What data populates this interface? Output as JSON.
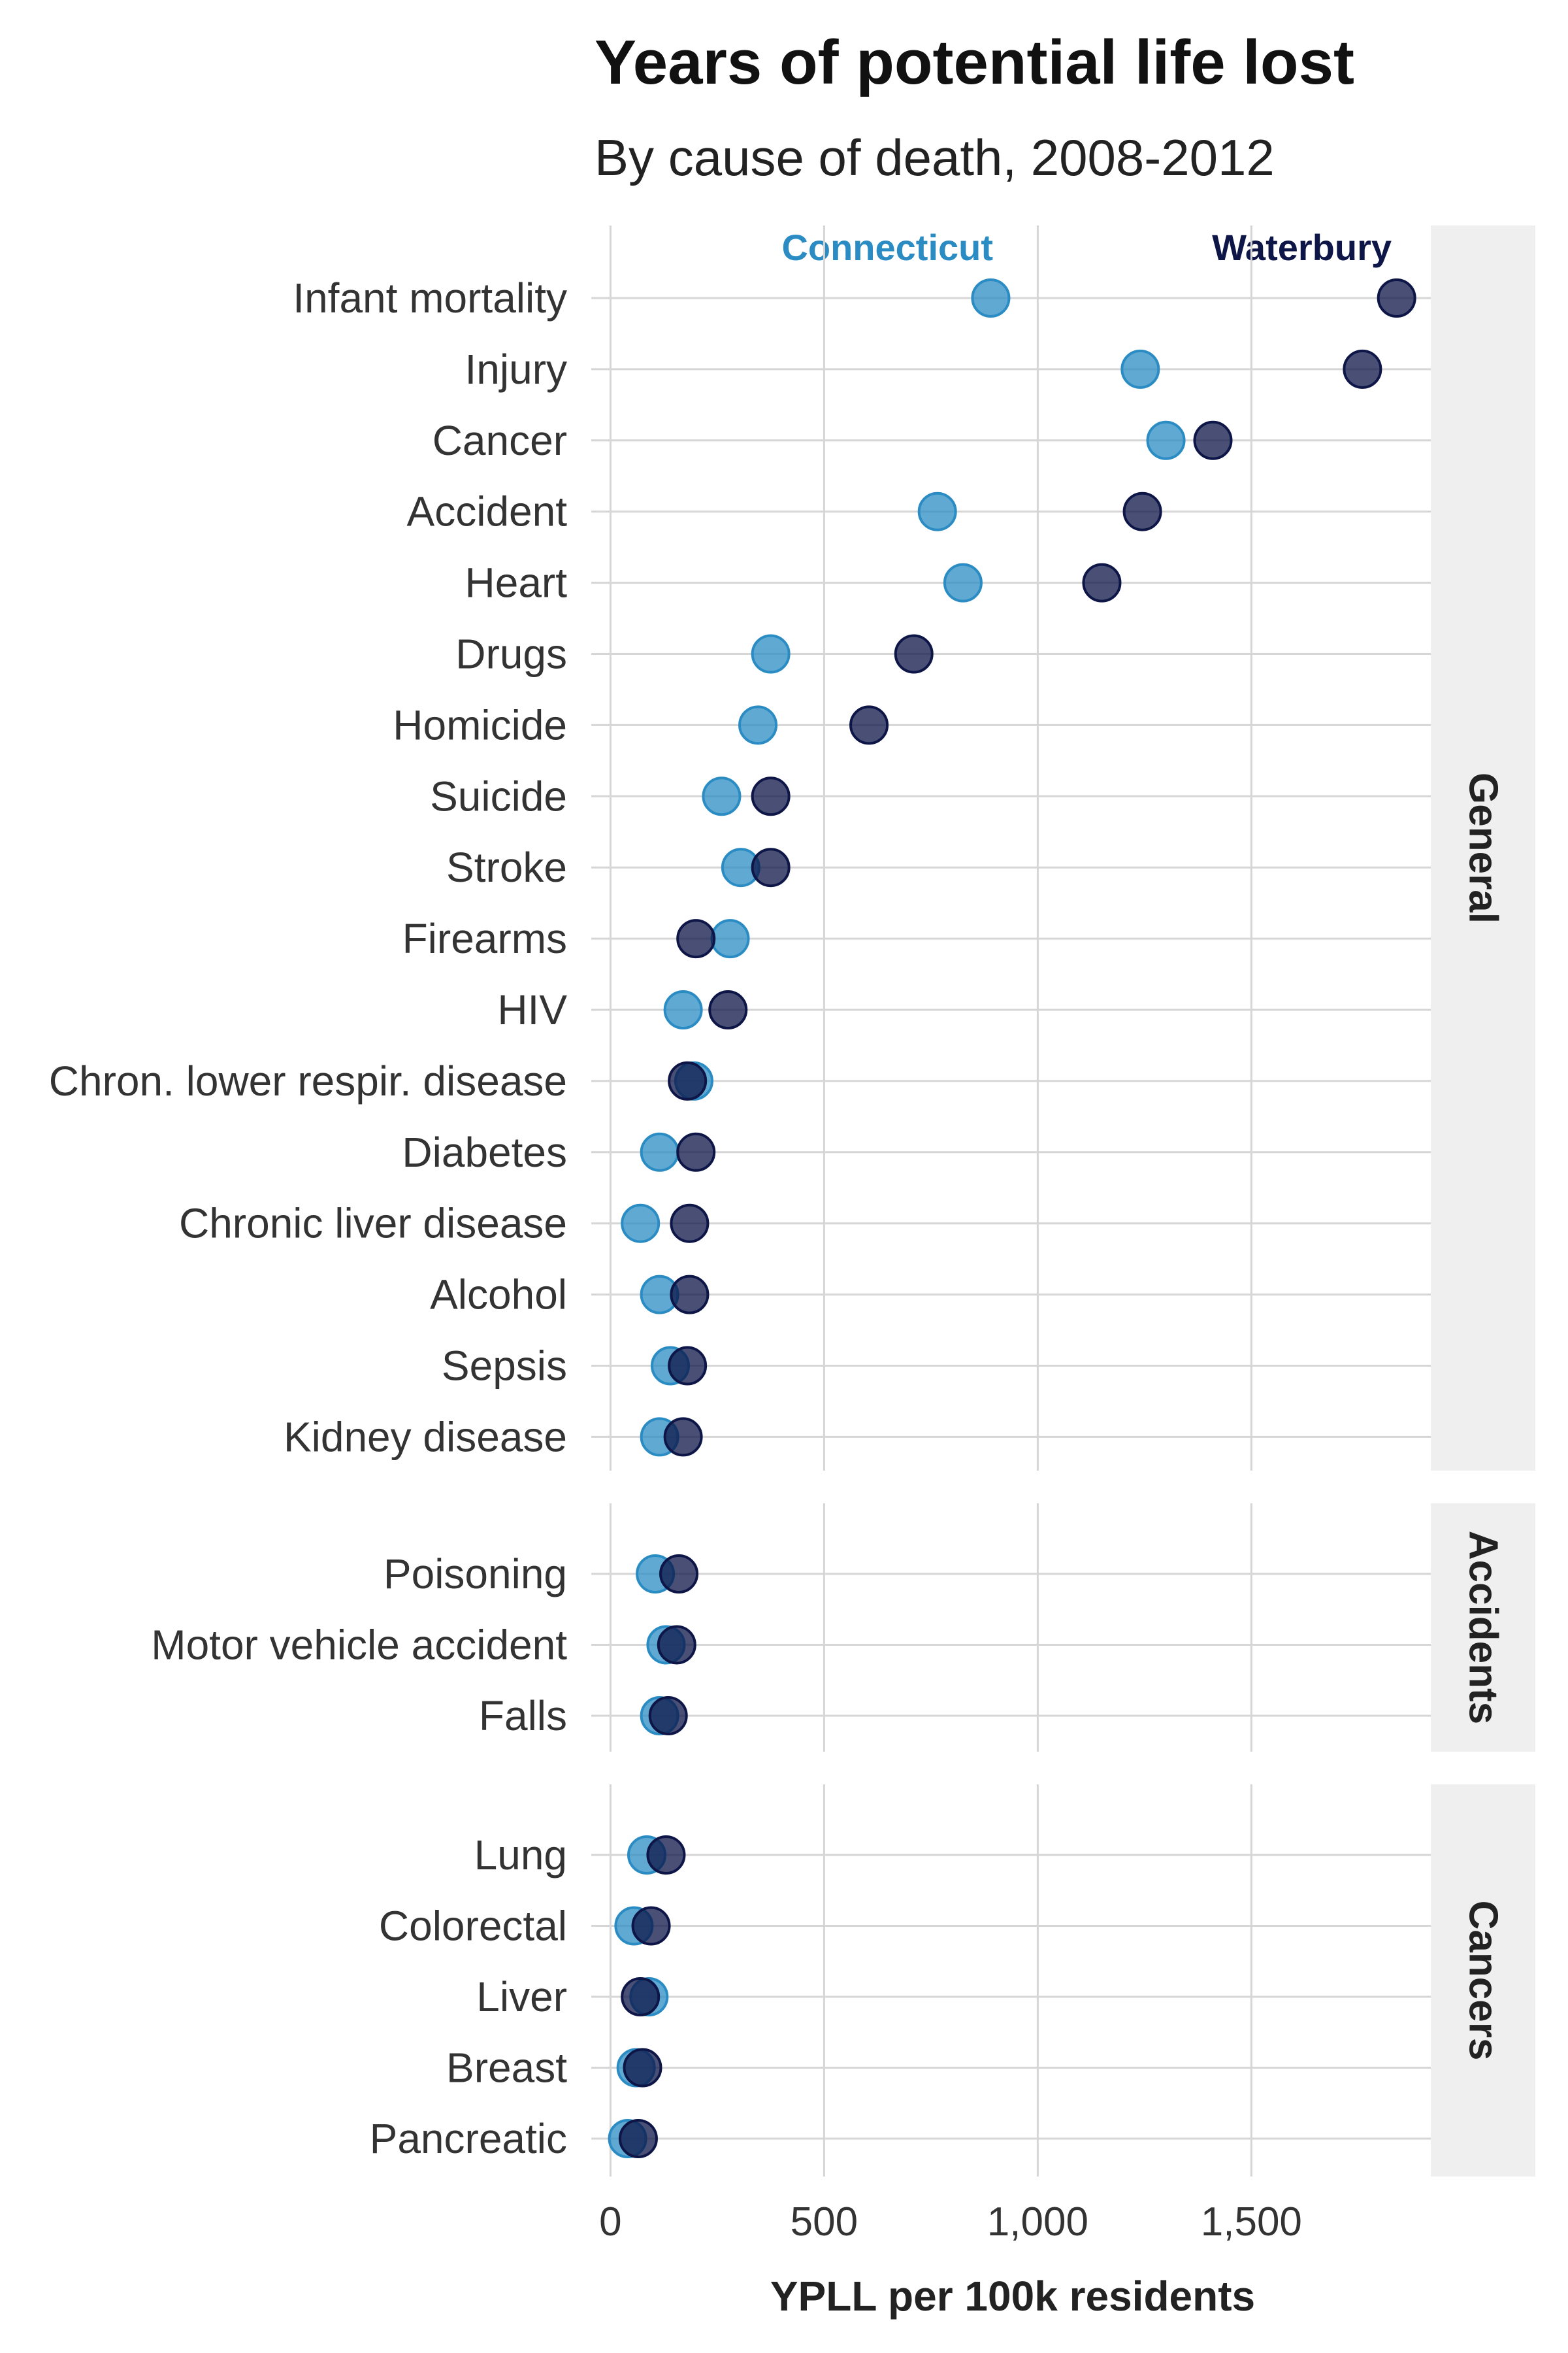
{
  "chart_data": {
    "type": "scatter",
    "title": "Years of potential life lost",
    "subtitle": "By cause of death, 2008-2012",
    "xlabel": "YPLL per 100k residents",
    "xlim": [
      -45,
      1920
    ],
    "xticks": [
      0,
      500,
      1000,
      1500
    ],
    "xtick_labels": [
      "0",
      "500",
      "1,000",
      "1,500"
    ],
    "grid": true,
    "legend": {
      "placement": "top",
      "entries": [
        {
          "name": "Connecticut",
          "color": "#2b8cc4"
        },
        {
          "name": "Waterbury",
          "color": "#0d1647"
        }
      ]
    },
    "panels": [
      {
        "name": "General",
        "rows": [
          {
            "label": "Infant mortality",
            "connecticut": 890,
            "waterbury": 1840
          },
          {
            "label": "Injury",
            "connecticut": 1240,
            "waterbury": 1760
          },
          {
            "label": "Cancer",
            "connecticut": 1300,
            "waterbury": 1410
          },
          {
            "label": "Accident",
            "connecticut": 765,
            "waterbury": 1245
          },
          {
            "label": "Heart",
            "connecticut": 825,
            "waterbury": 1150
          },
          {
            "label": "Drugs",
            "connecticut": 375,
            "waterbury": 710
          },
          {
            "label": "Homicide",
            "connecticut": 345,
            "waterbury": 605
          },
          {
            "label": "Suicide",
            "connecticut": 260,
            "waterbury": 375
          },
          {
            "label": "Stroke",
            "connecticut": 305,
            "waterbury": 375
          },
          {
            "label": "Firearms",
            "connecticut": 280,
            "waterbury": 200
          },
          {
            "label": "HIV",
            "connecticut": 170,
            "waterbury": 275
          },
          {
            "label": "Chron. lower respir. disease",
            "connecticut": 195,
            "waterbury": 180
          },
          {
            "label": "Diabetes",
            "connecticut": 115,
            "waterbury": 200
          },
          {
            "label": "Chronic liver disease",
            "connecticut": 70,
            "waterbury": 185
          },
          {
            "label": "Alcohol",
            "connecticut": 115,
            "waterbury": 185
          },
          {
            "label": "Sepsis",
            "connecticut": 140,
            "waterbury": 180
          },
          {
            "label": "Kidney disease",
            "connecticut": 115,
            "waterbury": 170
          }
        ]
      },
      {
        "name": "Accidents",
        "rows": [
          {
            "label": "Poisoning",
            "connecticut": 105,
            "waterbury": 160
          },
          {
            "label": "Motor vehicle accident",
            "connecticut": 130,
            "waterbury": 155
          },
          {
            "label": "Falls",
            "connecticut": 115,
            "waterbury": 135
          }
        ]
      },
      {
        "name": "Cancers",
        "rows": [
          {
            "label": "Lung",
            "connecticut": 85,
            "waterbury": 130
          },
          {
            "label": "Colorectal",
            "connecticut": 55,
            "waterbury": 95
          },
          {
            "label": "Liver",
            "connecticut": 90,
            "waterbury": 70
          },
          {
            "label": "Breast",
            "connecticut": 60,
            "waterbury": 75
          },
          {
            "label": "Pancreatic",
            "connecticut": 40,
            "waterbury": 65
          }
        ]
      }
    ]
  }
}
